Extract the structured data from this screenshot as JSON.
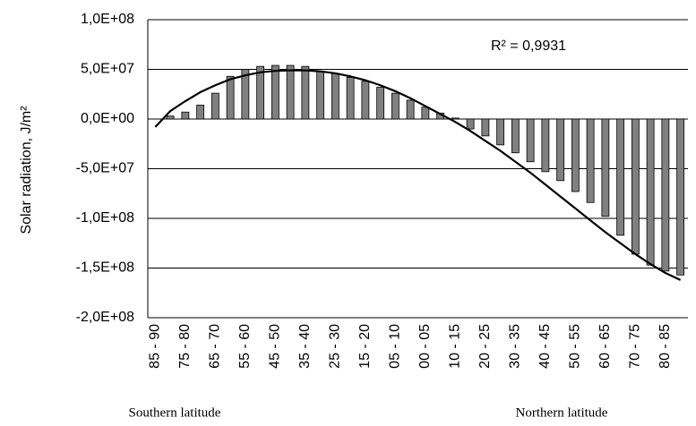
{
  "chart_data": {
    "type": "bar",
    "y_label": "Solar radiation, J/m²",
    "annotations": [
      "R² = 0,9931",
      "Southern latitude",
      "Northern latitude"
    ],
    "categories": [
      "85 - 90",
      null,
      "75 - 80",
      null,
      "65 - 70",
      null,
      "55 - 60",
      null,
      "45 - 50",
      null,
      "35 - 40",
      null,
      "25 - 30",
      null,
      "15 - 20",
      null,
      "05 - 10",
      null,
      "00 - 05",
      null,
      "10 - 15",
      null,
      "20 - 25",
      null,
      "30 - 35",
      null,
      "40 - 45",
      null,
      "50 - 55",
      null,
      "60 - 65",
      null,
      "70 - 75",
      null,
      "80 - 85",
      null
    ],
    "series": [
      {
        "type": "bar",
        "color": "#808080",
        "values": [
          0,
          3000000,
          7000000,
          14000000,
          26000000,
          43000000,
          50000000,
          53000000,
          54000000,
          54000000,
          53000000,
          48000000,
          46000000,
          42000000,
          38000000,
          32000000,
          26000000,
          19000000,
          12000000,
          6000000,
          1000000,
          -10000000,
          -17000000,
          -26000000,
          -34000000,
          -43000000,
          -53000000,
          -62000000,
          -73000000,
          -84000000,
          -98000000,
          -117000000,
          -136000000,
          -147000000,
          -153000000,
          -157000000
        ]
      },
      {
        "type": "line",
        "color": "#000000",
        "values": [
          -8000000,
          8000000,
          18000000,
          27000000,
          34000000,
          40000000,
          44000000,
          47000000,
          48500000,
          49000000,
          49000000,
          48000000,
          46000000,
          43000000,
          39000000,
          34000000,
          28000000,
          21000000,
          13000000,
          5000000,
          -3000000,
          -12000000,
          -22000000,
          -32000000,
          -43000000,
          -54000000,
          -66000000,
          -78000000,
          -90000000,
          -102000000,
          -114000000,
          -125000000,
          -136000000,
          -146000000,
          -155000000,
          -162000000
        ]
      }
    ],
    "ylim": [
      -200000000,
      100000000
    ],
    "yticks": [
      {
        "value": -200000000,
        "label": "-2,0E+08"
      },
      {
        "value": -150000000,
        "label": "-1,5E+08"
      },
      {
        "value": -100000000,
        "label": "-1,0E+08"
      },
      {
        "value": -50000000,
        "label": "-5,0E+07"
      },
      {
        "value": 0,
        "label": "0,0E+00"
      },
      {
        "value": 50000000,
        "label": "5,0E+07"
      },
      {
        "value": 100000000,
        "label": "1,0E+08"
      }
    ],
    "grid": true
  }
}
